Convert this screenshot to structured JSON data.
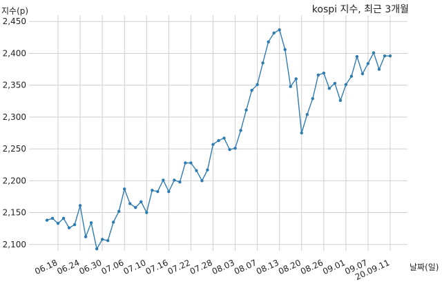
{
  "chart_data": {
    "type": "line",
    "title": "kospi 지수, 최근 3개월",
    "ylabel": "지수(p)",
    "xlabel": "날짜(일)",
    "ylim": [
      2090,
      2460
    ],
    "yticks": [
      2100,
      2150,
      2200,
      2250,
      2300,
      2350,
      2400,
      2450
    ],
    "ytick_labels": [
      "2,100",
      "2,150",
      "2,200",
      "2,250",
      "2,300",
      "2,350",
      "2,400",
      "2,450"
    ],
    "xticks": [
      {
        "index": 3,
        "label": "06.18"
      },
      {
        "index": 7,
        "label": "06.24"
      },
      {
        "index": 11,
        "label": "06.30"
      },
      {
        "index": 15,
        "label": "07.06"
      },
      {
        "index": 19,
        "label": "07.10"
      },
      {
        "index": 23,
        "label": "07.16"
      },
      {
        "index": 27,
        "label": "07.22"
      },
      {
        "index": 31,
        "label": "07.28"
      },
      {
        "index": 35,
        "label": "08.03"
      },
      {
        "index": 39,
        "label": "08.07"
      },
      {
        "index": 43,
        "label": "08.13"
      },
      {
        "index": 47,
        "label": "08.20"
      },
      {
        "index": 51,
        "label": "08.26"
      },
      {
        "index": 55,
        "label": "09.01"
      },
      {
        "index": 59,
        "label": "09.07"
      },
      {
        "index": 63,
        "label": "20.09.11"
      }
    ],
    "grid": true,
    "series": [
      {
        "color": "#2e7bb0",
        "values": [
          2138,
          2141,
          2133,
          2141,
          2126,
          2131,
          2161,
          2112,
          2134,
          2093,
          2108,
          2106,
          2135,
          2152,
          2187,
          2164,
          2158,
          2167,
          2150,
          2185,
          2183,
          2201,
          2183,
          2201,
          2198,
          2228,
          2228,
          2216,
          2200,
          2217,
          2257,
          2263,
          2267,
          2249,
          2251,
          2279,
          2311,
          2342,
          2351,
          2385,
          2418,
          2432,
          2437,
          2406,
          2348,
          2360,
          2275,
          2304,
          2329,
          2366,
          2369,
          2345,
          2353,
          2326,
          2351,
          2364,
          2395,
          2368,
          2384,
          2401,
          2375,
          2396,
          2396
        ]
      }
    ]
  }
}
